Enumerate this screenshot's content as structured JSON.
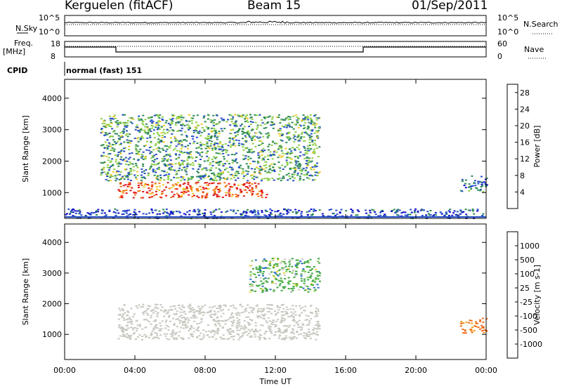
{
  "header": {
    "station": "Kerguelen (fitACF)",
    "beam": "Beam 15",
    "date": "01/Sep/2011"
  },
  "summary": {
    "nsky_label": "N.Sky",
    "nsky_ticks": [
      "10^5",
      "10^0"
    ],
    "nsearch_label": "N.Search",
    "nsearch_ticks": [
      "10^5",
      "10^0"
    ],
    "freq_label": "Freq.",
    "freq_unit": "[MHz]",
    "freq_ticks": [
      "18",
      "8"
    ],
    "nave_label": "Nave",
    "nave_ticks": [
      "60",
      "0"
    ],
    "cpid_label": "CPID",
    "cpid_value": "normal (fast) 151"
  },
  "chart_data": [
    {
      "type": "heatmap",
      "title": "",
      "xlabel": "",
      "ylabel": "Slant Range [km]",
      "x_ticks": [
        "00:00",
        "04:00",
        "08:00",
        "12:00",
        "16:00",
        "20:00",
        "00:00"
      ],
      "xlim_hours": [
        0,
        24
      ],
      "ylim_km": [
        180,
        4600
      ],
      "y_ticks": [
        1000,
        2000,
        3000,
        4000
      ],
      "colorbar": {
        "label": "Power [dB]",
        "ticks": [
          "4",
          "8",
          "12",
          "16",
          "20",
          "24",
          "28"
        ],
        "range": [
          0,
          30
        ],
        "colors": [
          "#1414c8",
          "#2850c8",
          "#2e8b57",
          "#8ed048",
          "#f0c828",
          "#f07818",
          "#e01818"
        ]
      },
      "features": [
        {
          "name": "strong E-region echo band",
          "t_start_h": 3.0,
          "t_end_h": 11.5,
          "range_km": [
            850,
            1350
          ],
          "power_db": 26
        },
        {
          "name": "F-region scatter",
          "t_start_h": 2.0,
          "t_end_h": 14.5,
          "range_km": [
            1400,
            3500
          ],
          "power_db": 12
        },
        {
          "name": "near-range ground clutter",
          "t_start_h": 0,
          "t_end_h": 24,
          "range_km": [
            200,
            500
          ],
          "power_db": 6
        },
        {
          "name": "late echoes",
          "t_start_h": 22.5,
          "t_end_h": 24,
          "range_km": [
            1050,
            1550
          ],
          "power_db": 8
        }
      ]
    },
    {
      "type": "heatmap",
      "title": "",
      "xlabel": "Time UT",
      "ylabel": "Slant Range [km]",
      "x_ticks": [
        "00:00",
        "04:00",
        "08:00",
        "12:00",
        "16:00",
        "20:00",
        "00:00"
      ],
      "xlim_hours": [
        0,
        24
      ],
      "ylim_km": [
        180,
        4600
      ],
      "y_ticks": [
        1000,
        2000,
        3000,
        4000
      ],
      "colorbar": {
        "label": "Velocity [m s-1]",
        "ticks": [
          "1000",
          "500",
          "100",
          "25",
          "-25",
          "-100",
          "-500",
          "-1000"
        ],
        "colors": [
          "#2040b8",
          "#3070c8",
          "#40a840",
          "#80d050",
          "#c8c8c0",
          "#f0d040",
          "#f0a020",
          "#f07020",
          "#e82010"
        ]
      },
      "features": [
        {
          "name": "ground scatter",
          "t_start_h": 3.0,
          "t_end_h": 14.5,
          "range_km": [
            850,
            2000
          ],
          "velocity_ms": 0
        },
        {
          "name": "ionospheric scatter",
          "t_start_h": 10.5,
          "t_end_h": 14.5,
          "range_km": [
            2400,
            3500
          ],
          "velocity_ms": 150
        },
        {
          "name": "late echoes",
          "t_start_h": 22.5,
          "t_end_h": 24,
          "range_km": [
            1050,
            1550
          ],
          "velocity_ms": -400
        }
      ]
    }
  ]
}
